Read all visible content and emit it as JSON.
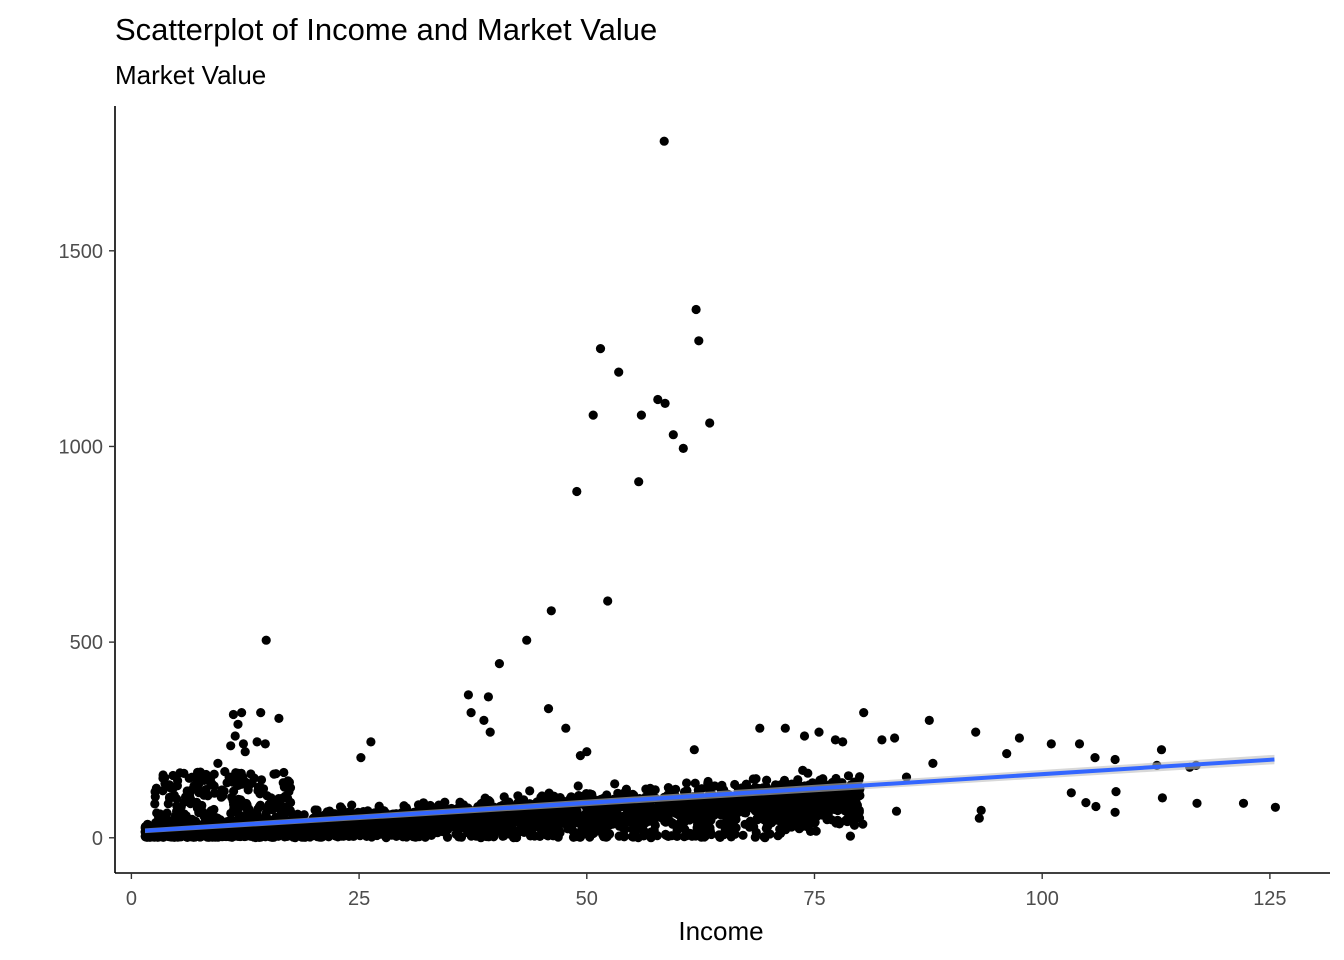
{
  "chart_data": {
    "type": "scatter",
    "title": "Scatterplot of Income and Market Value",
    "subtitle": "Market Value",
    "xlabel": "Income",
    "ylabel": "",
    "xlim": [
      -1.8,
      131.6
    ],
    "ylim": [
      -90,
      1870
    ],
    "x_ticks": [
      0,
      25,
      50,
      75,
      100,
      125
    ],
    "x_tick_labels": [
      "0",
      "25",
      "50",
      "75",
      "100",
      "125"
    ],
    "y_ticks": [
      0,
      500,
      1000,
      1500
    ],
    "y_tick_labels": [
      "0",
      "500",
      "1000",
      "1500"
    ],
    "grid": false,
    "legend": "none",
    "colors": {
      "points": "#000000",
      "fit_line": "#3366FF",
      "fit_band": "#BEBEBE"
    },
    "outliers": [
      [
        58.5,
        1780
      ],
      [
        62.0,
        1350
      ],
      [
        62.3,
        1270
      ],
      [
        51.5,
        1250
      ],
      [
        53.5,
        1190
      ],
      [
        50.7,
        1080
      ],
      [
        56.0,
        1080
      ],
      [
        57.8,
        1120
      ],
      [
        58.6,
        1110
      ],
      [
        63.5,
        1060
      ],
      [
        59.5,
        1030
      ],
      [
        60.6,
        995
      ],
      [
        55.7,
        910
      ],
      [
        48.9,
        885
      ],
      [
        52.3,
        605
      ],
      [
        46.1,
        580
      ],
      [
        43.4,
        505
      ],
      [
        14.8,
        505
      ],
      [
        40.4,
        445
      ],
      [
        37.0,
        365
      ],
      [
        39.2,
        360
      ],
      [
        37.3,
        320
      ],
      [
        45.8,
        330
      ],
      [
        38.7,
        300
      ],
      [
        39.4,
        270
      ],
      [
        49.3,
        210
      ],
      [
        50.0,
        220
      ],
      [
        47.7,
        280
      ],
      [
        11.2,
        315
      ],
      [
        12.1,
        320
      ],
      [
        14.2,
        320
      ],
      [
        16.2,
        305
      ],
      [
        11.7,
        290
      ],
      [
        11.4,
        260
      ],
      [
        12.3,
        240
      ],
      [
        13.8,
        245
      ],
      [
        14.7,
        240
      ],
      [
        12.5,
        220
      ],
      [
        10.9,
        235
      ],
      [
        9.5,
        190
      ],
      [
        26.3,
        245
      ],
      [
        25.2,
        205
      ],
      [
        61.8,
        225
      ],
      [
        69.0,
        280
      ],
      [
        71.8,
        280
      ],
      [
        73.9,
        260
      ],
      [
        75.5,
        270
      ],
      [
        77.3,
        250
      ],
      [
        78.1,
        245
      ],
      [
        80.4,
        320
      ],
      [
        82.4,
        250
      ],
      [
        83.8,
        255
      ],
      [
        87.6,
        300
      ],
      [
        88.0,
        190
      ],
      [
        92.7,
        270
      ],
      [
        96.1,
        215
      ],
      [
        97.5,
        255
      ],
      [
        101.0,
        240
      ],
      [
        104.1,
        240
      ],
      [
        105.8,
        205
      ],
      [
        108.0,
        200
      ],
      [
        112.6,
        185
      ],
      [
        113.1,
        225
      ],
      [
        116.2,
        180
      ],
      [
        116.9,
        185
      ],
      [
        85.1,
        155
      ],
      [
        103.2,
        115
      ],
      [
        104.8,
        90
      ],
      [
        105.9,
        80
      ],
      [
        108.1,
        118
      ],
      [
        108.0,
        65
      ],
      [
        113.2,
        102
      ],
      [
        117.0,
        88
      ],
      [
        122.1,
        88
      ],
      [
        125.6,
        78
      ],
      [
        93.1,
        50
      ],
      [
        93.3,
        70
      ],
      [
        84.0,
        68
      ],
      [
        80.3,
        35
      ],
      [
        78.9,
        55
      ],
      [
        77.7,
        85
      ],
      [
        76.3,
        95
      ],
      [
        74.9,
        120
      ],
      [
        74.1,
        45
      ],
      [
        72.5,
        35
      ]
    ],
    "bulk_description": "dense cloud of points between income 1.5 and 80, market value mostly 0-150",
    "fit": {
      "method": "lm",
      "x": [
        1.5,
        125.5
      ],
      "y": [
        18,
        200
      ],
      "band_halfwidth_at_ends": [
        6,
        12
      ]
    }
  }
}
